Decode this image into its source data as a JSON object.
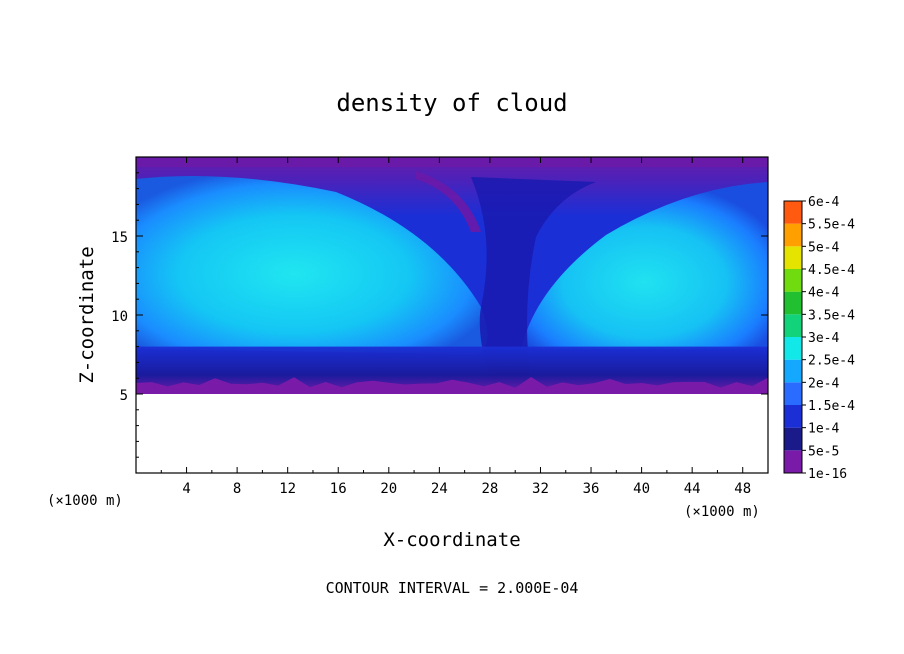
{
  "chart_data": {
    "type": "heatmap",
    "title": "density of cloud",
    "xlabel": "X-coordinate",
    "ylabel": "Z-coordinate",
    "x_unit_left": "(×1000 m)",
    "x_unit_right": "(×1000 m)",
    "xlim": [
      0,
      50
    ],
    "ylim": [
      0,
      20
    ],
    "x_ticks": [
      4,
      8,
      12,
      16,
      20,
      24,
      28,
      32,
      36,
      40,
      44,
      48
    ],
    "y_ticks": [
      5,
      10,
      15
    ],
    "grid": false,
    "colorbar": {
      "labels": [
        "1e-16",
        "5e-5",
        "1e-4",
        "1.5e-4",
        "2e-4",
        "2.5e-4",
        "3e-4",
        "3.5e-4",
        "4e-4",
        "4.5e-4",
        "5e-4",
        "5.5e-4",
        "6e-4"
      ],
      "colors": [
        "#7a1aa8",
        "#1a1a8a",
        "#1a2fd6",
        "#2a6cff",
        "#14a8ff",
        "#12e8e8",
        "#12d27a",
        "#20c030",
        "#70dc10",
        "#e4e400",
        "#ffa000",
        "#ff5a10",
        "#ff8080"
      ]
    },
    "footer": "CONTOUR INTERVAL = 2.000E-04"
  }
}
